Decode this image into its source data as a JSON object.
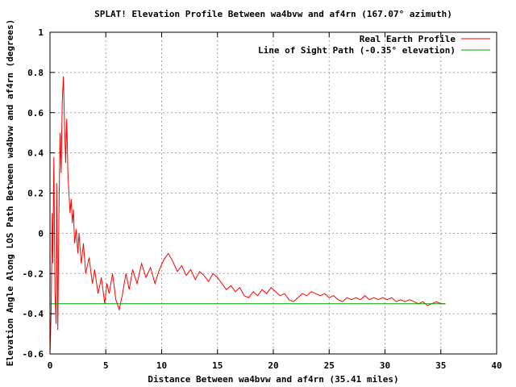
{
  "chart_data": {
    "type": "line",
    "title": "SPLAT! Elevation Profile Between wa4bvw and af4rn (167.07° azimuth)",
    "xlabel": "Distance Between wa4bvw and af4rn (35.41 miles)",
    "ylabel": "Elevation Angle Along LOS Path Between wa4bvw and af4rn (degrees)",
    "xlim": [
      0,
      40
    ],
    "ylim": [
      -0.6,
      1.0
    ],
    "xticks": [
      0,
      5,
      10,
      15,
      20,
      25,
      30,
      35,
      40
    ],
    "yticks": [
      -0.6,
      -0.4,
      -0.2,
      0,
      0.2,
      0.4,
      0.6,
      0.8,
      1
    ],
    "xtick_labels": [
      "0",
      "5",
      "10",
      "15",
      "20",
      "25",
      "30",
      "35",
      "40"
    ],
    "ytick_labels": [
      "-0.6",
      "-0.4",
      "-0.2",
      "0",
      "0.2",
      "0.4",
      "0.6",
      "0.8",
      "1"
    ],
    "grid": true,
    "legend_position": "top-right",
    "series": [
      {
        "name": "Real Earth Profile",
        "color": "#ff0000",
        "points": [
          [
            0.0,
            -0.6
          ],
          [
            0.1,
            -0.4
          ],
          [
            0.2,
            0.1
          ],
          [
            0.25,
            -0.15
          ],
          [
            0.35,
            0.38
          ],
          [
            0.45,
            -0.3
          ],
          [
            0.55,
            -0.45
          ],
          [
            0.6,
            0.25
          ],
          [
            0.7,
            -0.48
          ],
          [
            0.8,
            0.1
          ],
          [
            0.9,
            0.5
          ],
          [
            1.0,
            0.3
          ],
          [
            1.1,
            0.65
          ],
          [
            1.2,
            0.78
          ],
          [
            1.3,
            0.55
          ],
          [
            1.4,
            0.35
          ],
          [
            1.5,
            0.57
          ],
          [
            1.6,
            0.3
          ],
          [
            1.7,
            0.2
          ],
          [
            1.8,
            0.1
          ],
          [
            1.9,
            0.17
          ],
          [
            2.0,
            0.05
          ],
          [
            2.1,
            0.12
          ],
          [
            2.2,
            -0.05
          ],
          [
            2.35,
            0.02
          ],
          [
            2.5,
            -0.1
          ],
          [
            2.6,
            0.0
          ],
          [
            2.8,
            -0.15
          ],
          [
            3.0,
            -0.05
          ],
          [
            3.2,
            -0.2
          ],
          [
            3.5,
            -0.12
          ],
          [
            3.8,
            -0.25
          ],
          [
            4.0,
            -0.18
          ],
          [
            4.3,
            -0.3
          ],
          [
            4.6,
            -0.22
          ],
          [
            4.9,
            -0.35
          ],
          [
            5.1,
            -0.25
          ],
          [
            5.3,
            -0.3
          ],
          [
            5.6,
            -0.2
          ],
          [
            5.9,
            -0.33
          ],
          [
            6.2,
            -0.38
          ],
          [
            6.5,
            -0.3
          ],
          [
            6.8,
            -0.2
          ],
          [
            7.1,
            -0.28
          ],
          [
            7.4,
            -0.18
          ],
          [
            7.8,
            -0.25
          ],
          [
            8.2,
            -0.15
          ],
          [
            8.6,
            -0.22
          ],
          [
            9.0,
            -0.17
          ],
          [
            9.4,
            -0.25
          ],
          [
            9.8,
            -0.18
          ],
          [
            10.2,
            -0.13
          ],
          [
            10.6,
            -0.1
          ],
          [
            11.0,
            -0.14
          ],
          [
            11.4,
            -0.19
          ],
          [
            11.8,
            -0.16
          ],
          [
            12.2,
            -0.21
          ],
          [
            12.6,
            -0.18
          ],
          [
            13.0,
            -0.23
          ],
          [
            13.4,
            -0.19
          ],
          [
            13.8,
            -0.21
          ],
          [
            14.2,
            -0.24
          ],
          [
            14.6,
            -0.2
          ],
          [
            15.0,
            -0.22
          ],
          [
            15.4,
            -0.25
          ],
          [
            15.8,
            -0.28
          ],
          [
            16.2,
            -0.26
          ],
          [
            16.6,
            -0.29
          ],
          [
            17.0,
            -0.27
          ],
          [
            17.4,
            -0.31
          ],
          [
            17.8,
            -0.32
          ],
          [
            18.2,
            -0.29
          ],
          [
            18.6,
            -0.31
          ],
          [
            19.0,
            -0.28
          ],
          [
            19.4,
            -0.3
          ],
          [
            19.8,
            -0.27
          ],
          [
            20.2,
            -0.29
          ],
          [
            20.6,
            -0.31
          ],
          [
            21.0,
            -0.3
          ],
          [
            21.4,
            -0.33
          ],
          [
            21.8,
            -0.34
          ],
          [
            22.2,
            -0.32
          ],
          [
            22.6,
            -0.3
          ],
          [
            23.0,
            -0.31
          ],
          [
            23.4,
            -0.29
          ],
          [
            23.8,
            -0.3
          ],
          [
            24.2,
            -0.31
          ],
          [
            24.6,
            -0.3
          ],
          [
            25.0,
            -0.32
          ],
          [
            25.4,
            -0.31
          ],
          [
            25.8,
            -0.33
          ],
          [
            26.2,
            -0.34
          ],
          [
            26.6,
            -0.32
          ],
          [
            27.0,
            -0.33
          ],
          [
            27.4,
            -0.32
          ],
          [
            27.8,
            -0.33
          ],
          [
            28.2,
            -0.31
          ],
          [
            28.6,
            -0.33
          ],
          [
            29.0,
            -0.32
          ],
          [
            29.4,
            -0.33
          ],
          [
            29.8,
            -0.32
          ],
          [
            30.2,
            -0.33
          ],
          [
            30.6,
            -0.32
          ],
          [
            31.0,
            -0.34
          ],
          [
            31.4,
            -0.33
          ],
          [
            31.8,
            -0.34
          ],
          [
            32.2,
            -0.33
          ],
          [
            32.6,
            -0.34
          ],
          [
            33.0,
            -0.35
          ],
          [
            33.4,
            -0.34
          ],
          [
            33.8,
            -0.36
          ],
          [
            34.2,
            -0.35
          ],
          [
            34.6,
            -0.34
          ],
          [
            35.0,
            -0.35
          ],
          [
            35.41,
            -0.35
          ]
        ]
      },
      {
        "name": "Line of Sight Path (-0.35° elevation)",
        "color": "#00a000",
        "points": [
          [
            0.0,
            -0.35
          ],
          [
            35.41,
            -0.35
          ]
        ]
      }
    ]
  }
}
